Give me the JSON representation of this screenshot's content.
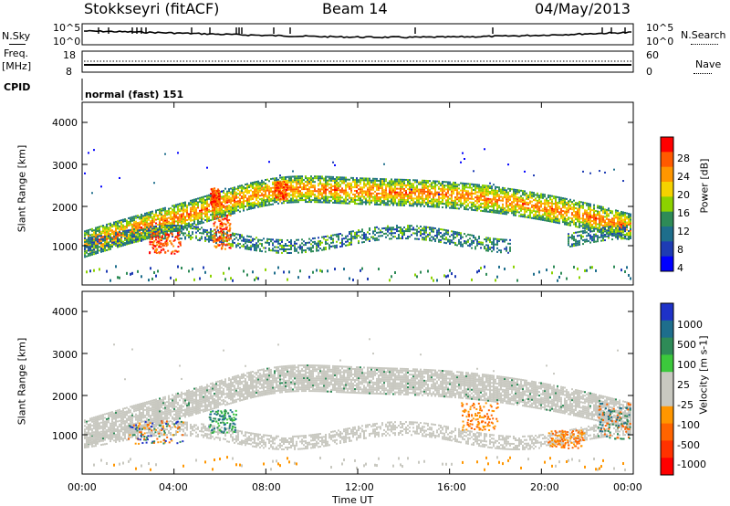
{
  "header": {
    "station": "Stokkseyri (fitACF)",
    "beam": "Beam 14",
    "date": "04/May/2013"
  },
  "noise_panel": {
    "left_label": "N.Sky",
    "right_label": "N.Search",
    "left_ticks": [
      "10^5",
      "10^0"
    ],
    "right_ticks": [
      "10^5",
      "10^0"
    ]
  },
  "freq_panel": {
    "left_label_1": "Freq.",
    "left_label_2": "[MHz]",
    "right_label": "Nave",
    "left_ticks": [
      "18",
      "8"
    ],
    "right_ticks": [
      "60",
      "0"
    ]
  },
  "cpid": {
    "label": "CPID",
    "value": "normal (fast) 151"
  },
  "power_colorbar": {
    "label": "Power [dB]",
    "ticks": [
      "28",
      "24",
      "20",
      "16",
      "12",
      "8",
      "4"
    ],
    "colors": [
      "#ff0000",
      "#ff5a00",
      "#ff9600",
      "#f5d200",
      "#8cd200",
      "#2e8b57",
      "#1e6e8c",
      "#1e3cb4",
      "#0000ff"
    ]
  },
  "velocity_colorbar": {
    "label": "Velocity [m s-1]",
    "ticks": [
      "1000",
      "500",
      "100",
      "25",
      "-25",
      "-100",
      "-500",
      "-1000"
    ],
    "colors": [
      "#1e32c8",
      "#1e6e8c",
      "#2e8b57",
      "#3cc83c",
      "#c8c8c0",
      "#c8c8c0",
      "#ff9600",
      "#ff6400",
      "#ff3200",
      "#ff0000"
    ]
  },
  "chart_data": [
    {
      "type": "heatmap",
      "ylabel": "Slant Range [km]",
      "ylim": [
        180,
        4600
      ],
      "yticks": [
        "4000",
        "3000",
        "2000",
        "1000"
      ],
      "xticks": [
        "00:00",
        "04:00",
        "08:00",
        "12:00",
        "16:00",
        "20:00",
        "00:00"
      ],
      "series": [
        {
          "name": "Power",
          "unit": "dB"
        }
      ]
    },
    {
      "type": "heatmap",
      "ylabel": "Slant Range [km]",
      "ylim": [
        180,
        4600
      ],
      "yticks": [
        "4000",
        "3000",
        "2000",
        "1000"
      ],
      "xticks": [
        "00:00",
        "04:00",
        "08:00",
        "12:00",
        "16:00",
        "20:00",
        "00:00"
      ],
      "xlabel": "Time UT",
      "series": [
        {
          "name": "Velocity",
          "unit": "m s-1"
        }
      ]
    }
  ]
}
